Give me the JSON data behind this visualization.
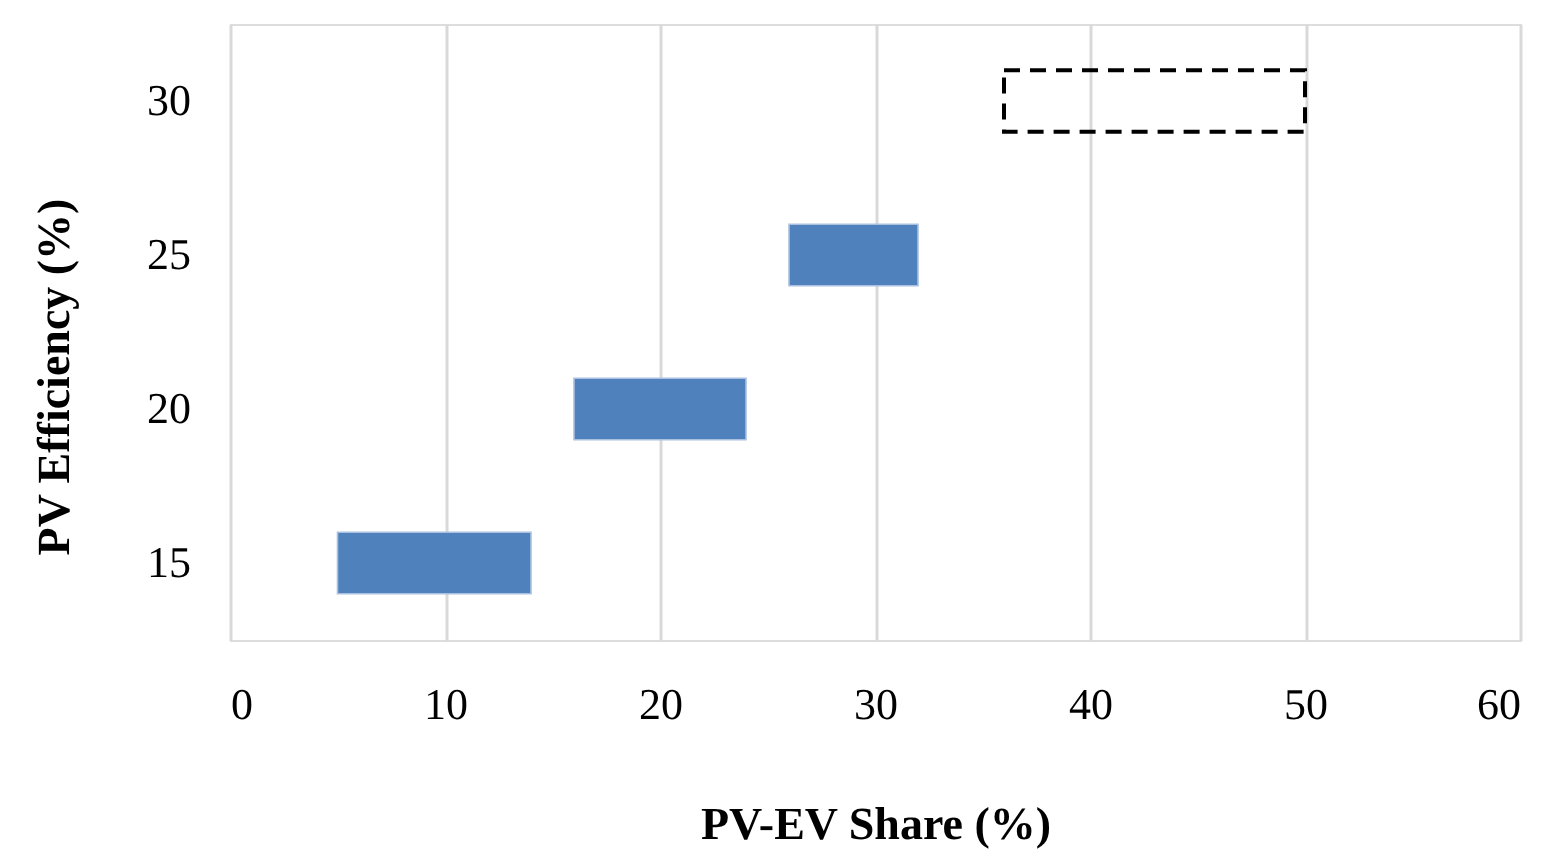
{
  "chart_data": {
    "type": "bar",
    "orientation": "horizontal",
    "xlabel": "PV-EV Share (%)",
    "ylabel": "PV Efficiency (%)",
    "categories": [
      "30",
      "25",
      "20",
      "15"
    ],
    "series": [
      {
        "color": "#4f81bd",
        "base": [
          null,
          26,
          16,
          5
        ],
        "values": [
          null,
          6,
          8,
          9
        ]
      },
      {
        "color": "#000000",
        "line_style": "dashed",
        "base": [
          36,
          null,
          null,
          null
        ],
        "values": [
          14,
          null,
          null,
          null
        ]
      }
    ],
    "xlim": [
      0,
      60
    ],
    "xticks": [
      0,
      10,
      20,
      30,
      40,
      50,
      60
    ],
    "grid": "x"
  }
}
